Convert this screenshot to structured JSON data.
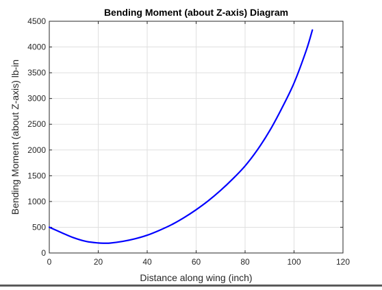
{
  "chart_data": {
    "type": "line",
    "title": "Bending Moment (about Z-axis) Diagram",
    "xlabel": "Distance along wing (inch)",
    "ylabel": "Bending Moment (about Z-axis) lb-in",
    "xlim": [
      0,
      120
    ],
    "ylim": [
      0,
      4500
    ],
    "xticks": [
      0,
      20,
      40,
      60,
      80,
      100,
      120
    ],
    "yticks": [
      0,
      500,
      1000,
      1500,
      2000,
      2500,
      3000,
      3500,
      4000,
      4500
    ],
    "grid": true,
    "series": [
      {
        "color": "#0000ff",
        "x": [
          0,
          5,
          10,
          15,
          20,
          22.5,
          25,
          30,
          35,
          40,
          45,
          50,
          55,
          60,
          65,
          70,
          75,
          80,
          85,
          90,
          95,
          100,
          105,
          107.5
        ],
        "y": [
          500,
          395,
          295,
          225,
          195,
          190,
          193,
          225,
          275,
          345,
          440,
          550,
          685,
          840,
          1015,
          1215,
          1440,
          1690,
          2000,
          2370,
          2810,
          3300,
          3935,
          4330
        ]
      }
    ]
  },
  "colors": {
    "axis": "#262626",
    "grid": "#dfdfdf",
    "line": "#0000ff"
  }
}
